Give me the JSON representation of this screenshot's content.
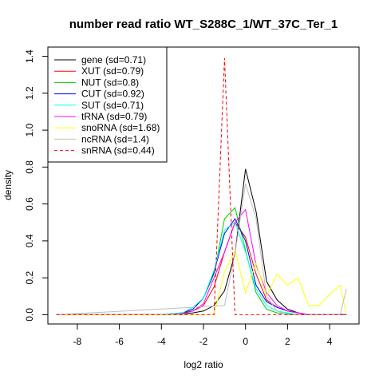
{
  "chart_data": {
    "type": "line",
    "title": "number read ratio WT_S288C_1/WT_37C_Ter_1",
    "xlabel": "log2 ratio",
    "ylabel": "density",
    "xlim": [
      -9.4,
      5.4
    ],
    "ylim": [
      -0.05,
      1.45
    ],
    "xticks": [
      -8,
      -6,
      -4,
      -2,
      0,
      2,
      4
    ],
    "yticks": [
      0.0,
      0.2,
      0.4,
      0.6,
      0.8,
      1.0,
      1.2,
      1.4
    ],
    "xtick_labels": [
      "-8",
      "-6",
      "-4",
      "-2",
      "0",
      "2",
      "4"
    ],
    "ytick_labels": [
      "0.0",
      "0.2",
      "0.4",
      "0.6",
      "0.8",
      "1.0",
      "1.2",
      "1.4"
    ],
    "legend_position": "top-left",
    "grid": false,
    "series": [
      {
        "name": "gene (sd=0.71)",
        "color": "#000000",
        "dash": false,
        "x": [
          -9.0,
          -4.0,
          -3.5,
          -3.0,
          -2.5,
          -2.0,
          -1.5,
          -1.0,
          -0.5,
          0.0,
          0.5,
          1.0,
          1.5,
          2.0,
          2.5,
          3.0,
          4.8
        ],
        "y": [
          0.0,
          0.0,
          0.003,
          0.005,
          0.01,
          0.02,
          0.05,
          0.13,
          0.33,
          0.79,
          0.56,
          0.18,
          0.08,
          0.03,
          0.01,
          0.0,
          0.0
        ]
      },
      {
        "name": "XUT (sd=0.79)",
        "color": "#ff0000",
        "dash": false,
        "x": [
          -9.0,
          -4.0,
          -3.5,
          -3.0,
          -2.5,
          -2.0,
          -1.5,
          -1.0,
          -0.5,
          0.0,
          0.5,
          1.0,
          1.5,
          2.0,
          2.5,
          3.0,
          4.8
        ],
        "y": [
          0.0,
          0.0,
          0.005,
          0.01,
          0.02,
          0.05,
          0.15,
          0.34,
          0.5,
          0.42,
          0.22,
          0.08,
          0.04,
          0.02,
          0.01,
          0.0,
          0.0
        ]
      },
      {
        "name": "NUT (sd=0.8)",
        "color": "#00cc00",
        "dash": false,
        "x": [
          -9.0,
          -4.0,
          -3.5,
          -3.0,
          -2.5,
          -2.0,
          -1.5,
          -1.0,
          -0.5,
          0.0,
          0.5,
          1.0,
          1.5,
          2.0,
          2.5,
          3.0,
          4.8
        ],
        "y": [
          0.0,
          0.0,
          0.005,
          0.01,
          0.03,
          0.09,
          0.22,
          0.52,
          0.58,
          0.35,
          0.12,
          0.03,
          0.01,
          0.005,
          0.0,
          0.0,
          0.0
        ]
      },
      {
        "name": "CUT (sd=0.92)",
        "color": "#0000ff",
        "dash": false,
        "x": [
          -9.0,
          -4.0,
          -3.5,
          -3.0,
          -2.5,
          -2.0,
          -1.5,
          -1.0,
          -0.5,
          0.0,
          0.5,
          1.0,
          1.5,
          2.0,
          2.5,
          3.0,
          4.8
        ],
        "y": [
          0.0,
          0.0,
          0.005,
          0.01,
          0.03,
          0.09,
          0.23,
          0.44,
          0.52,
          0.4,
          0.16,
          0.07,
          0.04,
          0.02,
          0.01,
          0.0,
          0.0
        ]
      },
      {
        "name": "SUT (sd=0.71)",
        "color": "#00ffff",
        "dash": false,
        "x": [
          -9.0,
          -4.0,
          -3.5,
          -3.0,
          -2.5,
          -2.0,
          -1.5,
          -1.0,
          -0.5,
          0.0,
          0.5,
          1.0,
          1.5,
          2.0,
          2.5,
          3.0,
          4.8
        ],
        "y": [
          0.0,
          0.0,
          0.005,
          0.01,
          0.04,
          0.09,
          0.24,
          0.46,
          0.5,
          0.34,
          0.14,
          0.05,
          0.02,
          0.01,
          0.0,
          0.0,
          0.0
        ]
      },
      {
        "name": "tRNA (sd=0.79)",
        "color": "#ff00ff",
        "dash": false,
        "x": [
          -9.0,
          -4.0,
          -3.5,
          -3.0,
          -2.5,
          -2.0,
          -1.5,
          -1.0,
          -0.5,
          0.0,
          0.5,
          1.0,
          1.5,
          2.0,
          2.5,
          3.0,
          4.8
        ],
        "y": [
          0.0,
          0.0,
          0.0,
          0.005,
          0.02,
          0.06,
          0.2,
          0.34,
          0.5,
          0.57,
          0.27,
          0.12,
          0.05,
          0.02,
          0.01,
          0.0,
          0.0
        ]
      },
      {
        "name": "snoRNA (sd=1.68)",
        "color": "#ffff00",
        "dash": false,
        "x": [
          -9.0,
          -1.5,
          -1.0,
          -0.5,
          0.0,
          0.5,
          1.0,
          1.5,
          2.0,
          2.5,
          3.0,
          3.5,
          4.0,
          4.5,
          4.8
        ],
        "y": [
          0.0,
          0.0,
          0.23,
          0.35,
          0.12,
          0.28,
          0.1,
          0.22,
          0.16,
          0.2,
          0.05,
          0.05,
          0.11,
          0.16,
          0.0
        ]
      },
      {
        "name": "ncRNA (sd=1.4)",
        "color": "#bebebe",
        "dash": false,
        "x": [
          -9.0,
          -1.0,
          -0.5,
          0.0,
          0.5,
          1.0,
          1.5,
          2.0,
          2.5,
          3.0,
          3.5,
          4.0,
          4.5,
          4.8
        ],
        "y": [
          0.0,
          0.05,
          0.33,
          0.71,
          0.52,
          0.1,
          0.02,
          0.0,
          0.0,
          0.0,
          0.0,
          0.0,
          0.0,
          0.14
        ]
      },
      {
        "name": "snRNA (sd=0.44)",
        "color": "#ff0000",
        "dash": true,
        "x": [
          -9.0,
          -1.5,
          -1.0,
          -0.5,
          0.0,
          0.5,
          1.0,
          2.0,
          4.8
        ],
        "y": [
          0.0,
          0.0,
          1.39,
          0.0,
          0.0,
          0.0,
          0.0,
          0.0,
          0.0
        ]
      }
    ]
  }
}
